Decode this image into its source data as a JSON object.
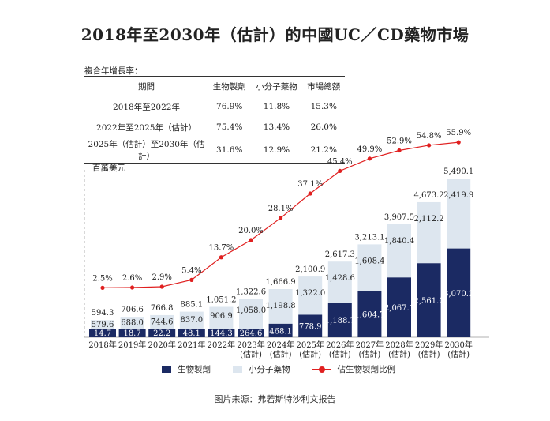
{
  "title": "2018年至2030年（估計）的中國UC／CD藥物市場",
  "cagr": {
    "caption": "複合年增長率：",
    "headers": [
      "期間",
      "生物製劑",
      "小分子藥物",
      "市場總額"
    ],
    "rows": [
      [
        "2018年至2022年",
        "76.9%",
        "11.8%",
        "15.3%"
      ],
      [
        "2022年至2025年（估計）",
        "75.4%",
        "13.4%",
        "26.0%"
      ],
      [
        "2025年（估計）至2030年（估計）",
        "31.6%",
        "12.9%",
        "21.2%"
      ]
    ]
  },
  "source": "图片来源：弗若斯特沙利文报告",
  "colors": {
    "biologics": "#1b2a63",
    "small_molecule": "#dde6ef",
    "ratio_line": "#e02020",
    "axis": "#b0b0b0"
  },
  "chart_data": {
    "type": "bar",
    "stacked": true,
    "unit_label": "百萬美元",
    "categories": [
      "2018年",
      "2019年",
      "2020年",
      "2021年",
      "2022年",
      "2023年\n(估計)",
      "2024年\n(估計)",
      "2025年\n(估計)",
      "2026年\n(估計)",
      "2027年\n(估計)",
      "2028年\n(估計)",
      "2029年\n(估計)",
      "2030年\n(估計)"
    ],
    "series": [
      {
        "name": "生物製劑",
        "values": [
          14.7,
          18.7,
          22.2,
          48.1,
          144.3,
          264.6,
          468.1,
          778.9,
          1188.7,
          1604.7,
          2067.1,
          2561.0,
          3070.2
        ],
        "labels": [
          "14.7",
          "18.7",
          "22.2",
          "48.1",
          "144.3",
          "264.6",
          "468.1",
          "778.9",
          "1,188.7",
          "1,604.7",
          "2,067.1",
          "2,561.0",
          "3,070.2"
        ]
      },
      {
        "name": "小分子藥物",
        "values": [
          579.6,
          688.0,
          744.6,
          837.0,
          906.9,
          1058.0,
          1198.8,
          1322.0,
          1428.6,
          1608.4,
          1840.4,
          2112.2,
          2419.9
        ],
        "labels": [
          "579.6",
          "688.0",
          "744.6",
          "837.0",
          "906.9",
          "1,058.0",
          "1,198.8",
          "1,322.0",
          "1,428.6",
          "1,608.4",
          "1,840.4",
          "2,112.2",
          "2,419.9"
        ]
      }
    ],
    "totals": [
      594.3,
      706.6,
      766.8,
      885.1,
      1051.2,
      1322.6,
      1666.9,
      2100.9,
      2617.3,
      3213.1,
      3907.5,
      4673.2,
      5490.1
    ],
    "total_labels": [
      "594.3",
      "706.6",
      "766.8",
      "885.1",
      "1,051.2",
      "1,322.6",
      "1,666.9",
      "2,100.9",
      "2,617.3",
      "3,213.1",
      "3,907.5",
      "4,673.2",
      "5,490.1"
    ],
    "line": {
      "name": "佔生物製劑比例",
      "values": [
        2.5,
        2.6,
        2.9,
        5.4,
        13.7,
        20.0,
        28.1,
        37.1,
        45.4,
        49.9,
        52.9,
        54.8,
        55.9
      ],
      "labels": [
        "2.5%",
        "2.6%",
        "2.9%",
        "5.4%",
        "13.7%",
        "20.0%",
        "28.1%",
        "37.1%",
        "45.4%",
        "49.9%",
        "52.9%",
        "54.8%",
        "55.9%"
      ]
    },
    "legend": [
      "生物製劑",
      "小分子藥物",
      "佔生物製劑比例"
    ],
    "legend_position": "bottom",
    "grid": false
  }
}
